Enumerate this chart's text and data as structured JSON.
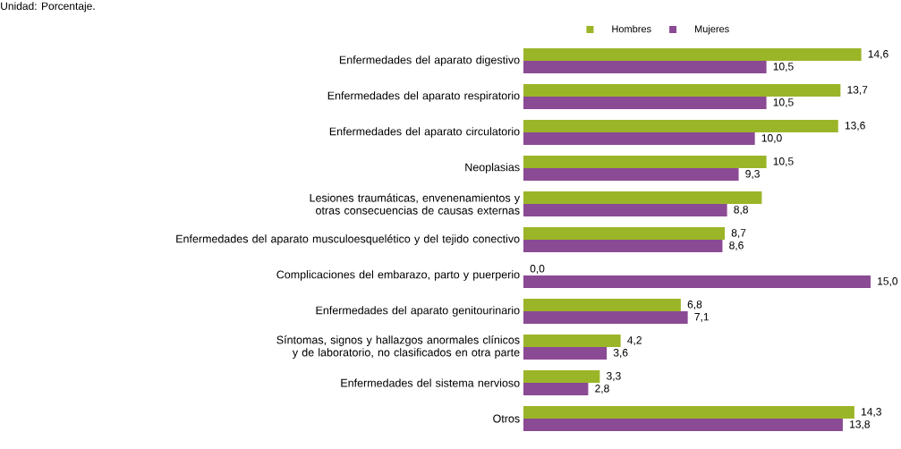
{
  "chart_data": {
    "type": "bar",
    "orientation": "horizontal",
    "title": "Unidad: Porcentaje.",
    "categories": [
      "Enfermedades del aparato digestivo",
      "Enfermedades del aparato respiratorio",
      "Enfermedades del aparato circulatorio",
      "Neoplasias",
      "Lesiones traumáticas, envenenamientos y otras consecuencias de causas externas",
      "Enfermedades del aparato musculoesquelético y del tejido conectivo",
      "Complicaciones del embarazo, parto y puerperio",
      "Enfermedades del aparato genitourinario",
      "Síntomas, signos y hallazgos anormales clínicos y de laboratorio, no clasificados en otra parte",
      "Enfermedades del sistema nervioso",
      "Otros"
    ],
    "series": [
      {
        "name": "Hombres",
        "color": "#9bb528",
        "values": [
          14.6,
          13.7,
          13.6,
          10.5,
          10.3,
          8.7,
          0.0,
          6.8,
          4.2,
          3.3,
          14.3
        ],
        "value_labels": [
          "14,6",
          "13,7",
          "13,6",
          "10,5",
          null,
          "8,7",
          "0,0",
          "6,8",
          "4,2",
          "3,3",
          "14,3"
        ]
      },
      {
        "name": "Mujeres",
        "color": "#8b4a94",
        "values": [
          10.5,
          10.5,
          10.0,
          9.3,
          8.8,
          8.6,
          15.0,
          7.1,
          3.6,
          2.8,
          13.8
        ],
        "value_labels": [
          "10,5",
          "10,5",
          "10,0",
          "9,3",
          "8,8",
          "8,6",
          "15,0",
          "7,1",
          "3,6",
          "2,8",
          "13,8"
        ]
      }
    ],
    "legend": "top"
  }
}
